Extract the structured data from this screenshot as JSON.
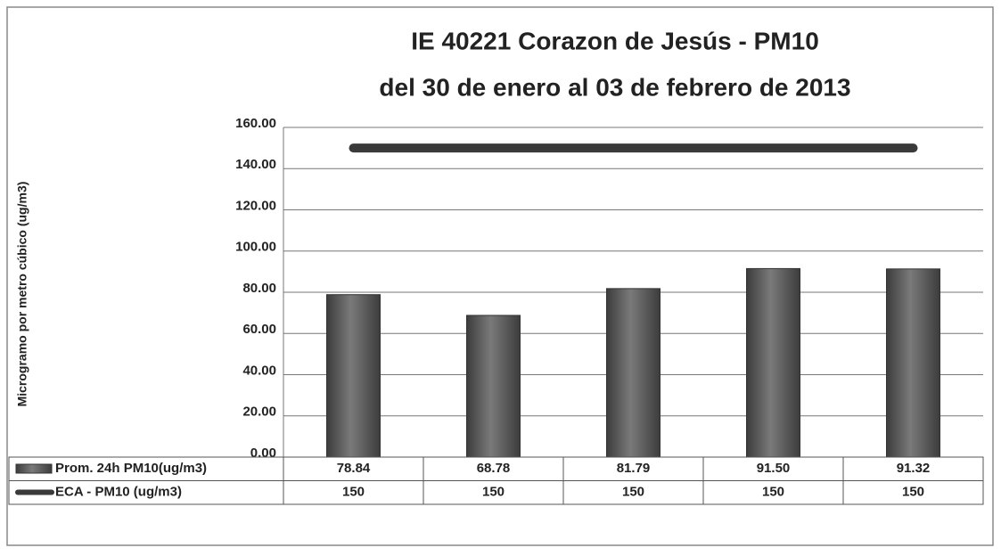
{
  "chart_data": {
    "type": "bar",
    "title": "IE 40221 Corazon de Jesús - PM10",
    "subtitle": "del 30 de enero al 03 de febrero de 2013",
    "y_label": "Microgramo por metro cúbico (ug/m3)",
    "categories": [
      null,
      null,
      null,
      null,
      null
    ],
    "ylim": [
      0,
      160
    ],
    "yticks": [
      {
        "value": 0,
        "label": "0.00"
      },
      {
        "value": 20,
        "label": "20.00"
      },
      {
        "value": 40,
        "label": "40.00"
      },
      {
        "value": 60,
        "label": "60.00"
      },
      {
        "value": 80,
        "label": "80.00"
      },
      {
        "value": 100,
        "label": "100.00"
      },
      {
        "value": 120,
        "label": "120.00"
      },
      {
        "value": 140,
        "label": "140.00"
      },
      {
        "value": 160,
        "label": "160.00"
      }
    ],
    "grid": true,
    "series": [
      {
        "name": "Prom. 24h PM10(ug/m3)",
        "type": "bar",
        "color": "#5a5a5a",
        "values": [
          78.84,
          68.78,
          81.79,
          91.5,
          91.32
        ],
        "value_labels": [
          "78.84",
          "68.78",
          "81.79",
          "91.50",
          "91.32"
        ]
      },
      {
        "name": "ECA - PM10 (ug/m3)",
        "type": "line",
        "color": "#3a3a3a",
        "values": [
          150,
          150,
          150,
          150,
          150
        ]
      }
    ]
  }
}
